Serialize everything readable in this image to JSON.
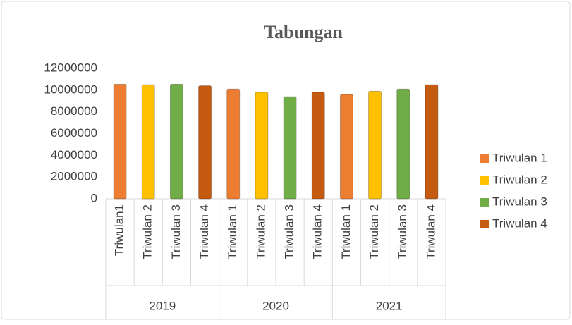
{
  "chart_data": {
    "type": "bar",
    "title": "Tabungan",
    "categories": [
      "2019",
      "2020",
      "2021"
    ],
    "sub_labels": [
      [
        "Triwulan1",
        "Triwulan 2",
        "Triwulan 3",
        "Triwulan 4"
      ],
      [
        "Triwulan 1",
        "Triwulan 2",
        "Triwulan 3",
        "Triwulan 4"
      ],
      [
        "Triwulan 1",
        "Triwulan 2",
        "Triwulan 3",
        "Triwulan 4"
      ]
    ],
    "series": [
      {
        "name": "Triwulan 1",
        "color": "#ed7d31",
        "values": [
          10550000,
          10100000,
          9600000
        ]
      },
      {
        "name": "Triwulan 2",
        "color": "#ffc000",
        "values": [
          10500000,
          9800000,
          9900000
        ]
      },
      {
        "name": "Triwulan 3",
        "color": "#70ad47",
        "values": [
          10550000,
          9400000,
          10100000
        ]
      },
      {
        "name": "Triwulan 4",
        "color": "#c55a11",
        "values": [
          10400000,
          9800000,
          10500000
        ]
      }
    ],
    "ylim": [
      0,
      12000000
    ],
    "yticks": [
      0,
      2000000,
      4000000,
      6000000,
      8000000,
      10000000,
      12000000
    ],
    "grid": false,
    "legend": "right"
  }
}
